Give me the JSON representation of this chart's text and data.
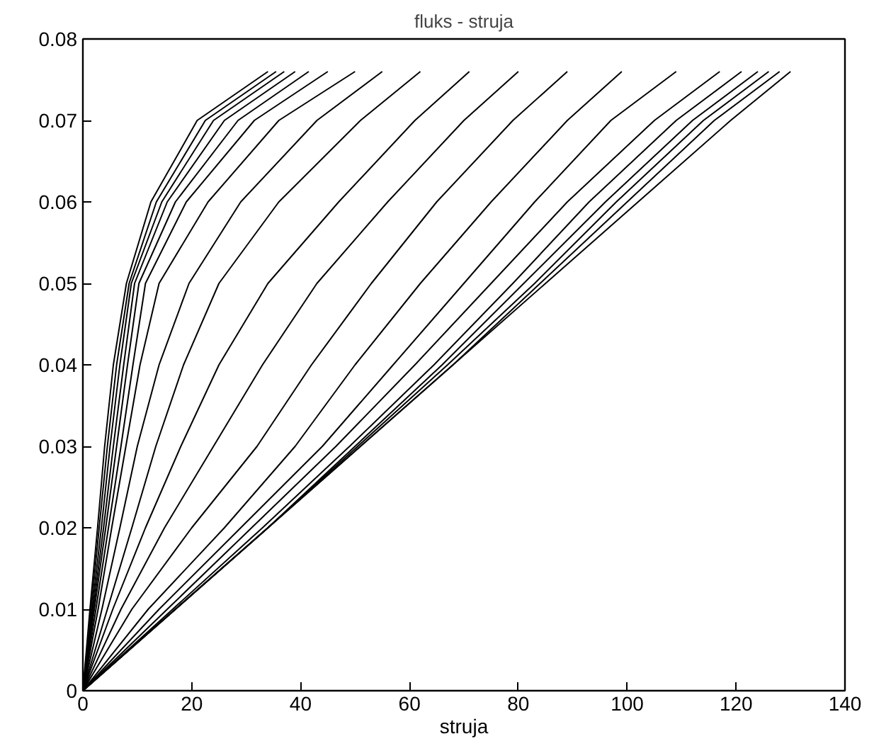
{
  "chart_data": {
    "type": "line",
    "title": "fluks - struja",
    "xlabel": "struja",
    "xlim": [
      0,
      140
    ],
    "ylim": [
      0,
      0.08
    ],
    "xticks": [
      0,
      20,
      40,
      60,
      80,
      100,
      120,
      140
    ],
    "yticks": [
      0,
      0.01,
      0.02,
      0.03,
      0.04,
      0.05,
      0.06,
      0.07,
      0.08
    ],
    "grid": false,
    "marker": "none",
    "line_style": "solid",
    "series": [
      {
        "color": "#000000",
        "x": [
          0,
          1.3,
          2.7,
          4,
          5.6,
          8,
          12.5,
          21,
          34
        ],
        "values": [
          0,
          0.01,
          0.02,
          0.03,
          0.04,
          0.05,
          0.06,
          0.07,
          0.076
        ]
      },
      {
        "color": "#000000",
        "x": [
          0,
          1.5,
          3,
          4.5,
          6.2,
          8.5,
          13.5,
          22.5,
          35.5
        ],
        "values": [
          0,
          0.01,
          0.02,
          0.03,
          0.04,
          0.05,
          0.06,
          0.07,
          0.076
        ]
      },
      {
        "color": "#000000",
        "x": [
          0,
          1.7,
          3.4,
          5,
          6.8,
          8.9,
          14.5,
          24,
          37
        ],
        "values": [
          0,
          0.01,
          0.02,
          0.03,
          0.04,
          0.05,
          0.06,
          0.07,
          0.076
        ]
      },
      {
        "color": "#000000",
        "x": [
          0,
          1.9,
          3.8,
          5.6,
          7.5,
          9.5,
          15.5,
          26,
          39
        ],
        "values": [
          0,
          0.01,
          0.02,
          0.03,
          0.04,
          0.05,
          0.06,
          0.07,
          0.076
        ]
      },
      {
        "color": "#000000",
        "x": [
          0,
          2.1,
          4.2,
          6.2,
          8.2,
          10.3,
          17,
          28.5,
          41.5
        ],
        "values": [
          0,
          0.01,
          0.02,
          0.03,
          0.04,
          0.05,
          0.06,
          0.07,
          0.076
        ]
      },
      {
        "color": "#000000",
        "x": [
          0,
          2.4,
          4.7,
          7,
          9.2,
          11.5,
          19,
          31.5,
          45
        ],
        "values": [
          0,
          0.01,
          0.02,
          0.03,
          0.04,
          0.05,
          0.06,
          0.07,
          0.076
        ]
      },
      {
        "color": "#000000",
        "x": [
          0,
          2.8,
          5.3,
          7.9,
          10.5,
          14,
          23,
          36,
          50
        ],
        "values": [
          0,
          0.01,
          0.02,
          0.03,
          0.04,
          0.05,
          0.06,
          0.07,
          0.076
        ]
      },
      {
        "color": "#000000",
        "x": [
          0,
          3.5,
          6.8,
          10,
          14,
          19.5,
          29,
          43,
          55
        ],
        "values": [
          0,
          0.01,
          0.02,
          0.03,
          0.04,
          0.05,
          0.06,
          0.07,
          0.076
        ]
      },
      {
        "color": "#000000",
        "x": [
          0,
          4.5,
          9,
          13.4,
          18.5,
          25,
          36,
          51,
          62
        ],
        "values": [
          0,
          0.01,
          0.02,
          0.03,
          0.04,
          0.05,
          0.06,
          0.07,
          0.076
        ]
      },
      {
        "color": "#000000",
        "x": [
          0,
          5.5,
          11.5,
          18,
          25,
          34,
          47,
          61,
          71
        ],
        "values": [
          0,
          0.01,
          0.02,
          0.03,
          0.04,
          0.05,
          0.06,
          0.07,
          0.076
        ]
      },
      {
        "color": "#000000",
        "x": [
          0,
          7,
          15,
          24,
          33,
          43,
          56,
          70,
          80
        ],
        "values": [
          0,
          0.01,
          0.02,
          0.03,
          0.04,
          0.05,
          0.06,
          0.07,
          0.076
        ]
      },
      {
        "color": "#000000",
        "x": [
          0,
          9,
          20,
          32,
          42,
          53,
          65,
          79,
          89
        ],
        "values": [
          0,
          0.01,
          0.02,
          0.03,
          0.04,
          0.05,
          0.06,
          0.07,
          0.076
        ]
      },
      {
        "color": "#000000",
        "x": [
          0,
          12,
          26,
          39,
          50,
          62,
          75,
          89,
          99
        ],
        "values": [
          0,
          0.01,
          0.02,
          0.03,
          0.04,
          0.05,
          0.06,
          0.07,
          0.076
        ]
      },
      {
        "color": "#000000",
        "x": [
          0,
          14,
          29,
          44,
          57,
          70,
          83,
          97,
          109
        ],
        "values": [
          0,
          0.01,
          0.02,
          0.03,
          0.04,
          0.05,
          0.06,
          0.07,
          0.076
        ]
      },
      {
        "color": "#000000",
        "x": [
          0,
          15.5,
          31,
          46.5,
          61,
          75,
          89,
          105,
          117
        ],
        "values": [
          0,
          0.01,
          0.02,
          0.03,
          0.04,
          0.05,
          0.06,
          0.07,
          0.076
        ]
      },
      {
        "color": "#000000",
        "x": [
          0,
          16.5,
          33,
          49,
          64.5,
          79,
          93,
          109,
          121
        ],
        "values": [
          0,
          0.01,
          0.02,
          0.03,
          0.04,
          0.05,
          0.06,
          0.07,
          0.076
        ]
      },
      {
        "color": "#000000",
        "x": [
          0,
          17,
          34,
          50,
          66,
          81,
          96,
          112,
          124
        ],
        "values": [
          0,
          0.01,
          0.02,
          0.03,
          0.04,
          0.05,
          0.06,
          0.07,
          0.076
        ]
      },
      {
        "color": "#000000",
        "x": [
          0,
          17,
          34,
          50.5,
          67,
          83,
          98,
          114,
          126
        ],
        "values": [
          0,
          0.01,
          0.02,
          0.03,
          0.04,
          0.05,
          0.06,
          0.07,
          0.076
        ]
      },
      {
        "color": "#000000",
        "x": [
          0,
          17,
          34,
          51,
          68,
          84,
          100,
          116,
          128
        ],
        "values": [
          0,
          0.01,
          0.02,
          0.03,
          0.04,
          0.05,
          0.06,
          0.07,
          0.076
        ]
      },
      {
        "color": "#000000",
        "x": [
          0,
          17,
          34,
          51,
          68,
          85,
          102,
          119,
          130
        ],
        "values": [
          0,
          0.01,
          0.02,
          0.03,
          0.04,
          0.05,
          0.06,
          0.07,
          0.076
        ]
      }
    ]
  }
}
